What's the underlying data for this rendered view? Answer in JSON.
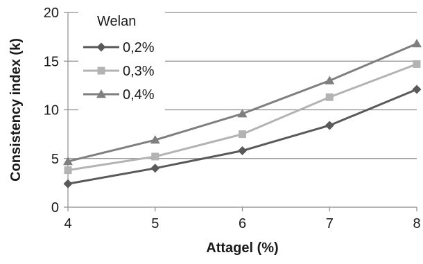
{
  "chart_data": {
    "type": "line",
    "title": "",
    "xlabel": "Attagel (%)",
    "ylabel": "Consistency index (k)",
    "x": [
      4,
      5,
      6,
      7,
      8
    ],
    "x_ticks": [
      "4",
      "5",
      "6",
      "7",
      "8"
    ],
    "y_ticks": [
      "0",
      "5",
      "10",
      "15",
      "20"
    ],
    "xlim": [
      4,
      8
    ],
    "ylim": [
      0,
      20
    ],
    "grid": "horizontal",
    "legend": {
      "title": "Welan",
      "placement": "top-left"
    },
    "series": [
      {
        "name": "0,2%",
        "marker": "diamond",
        "color": "#595959",
        "values": [
          2.4,
          4.0,
          5.8,
          8.4,
          12.1
        ]
      },
      {
        "name": "0,3%",
        "marker": "square",
        "color": "#b3b3b3",
        "values": [
          3.8,
          5.2,
          7.5,
          11.3,
          14.7
        ]
      },
      {
        "name": "0,4%",
        "marker": "triangle",
        "color": "#7f7f7f",
        "values": [
          4.7,
          6.9,
          9.6,
          13.0,
          16.8
        ]
      }
    ]
  }
}
